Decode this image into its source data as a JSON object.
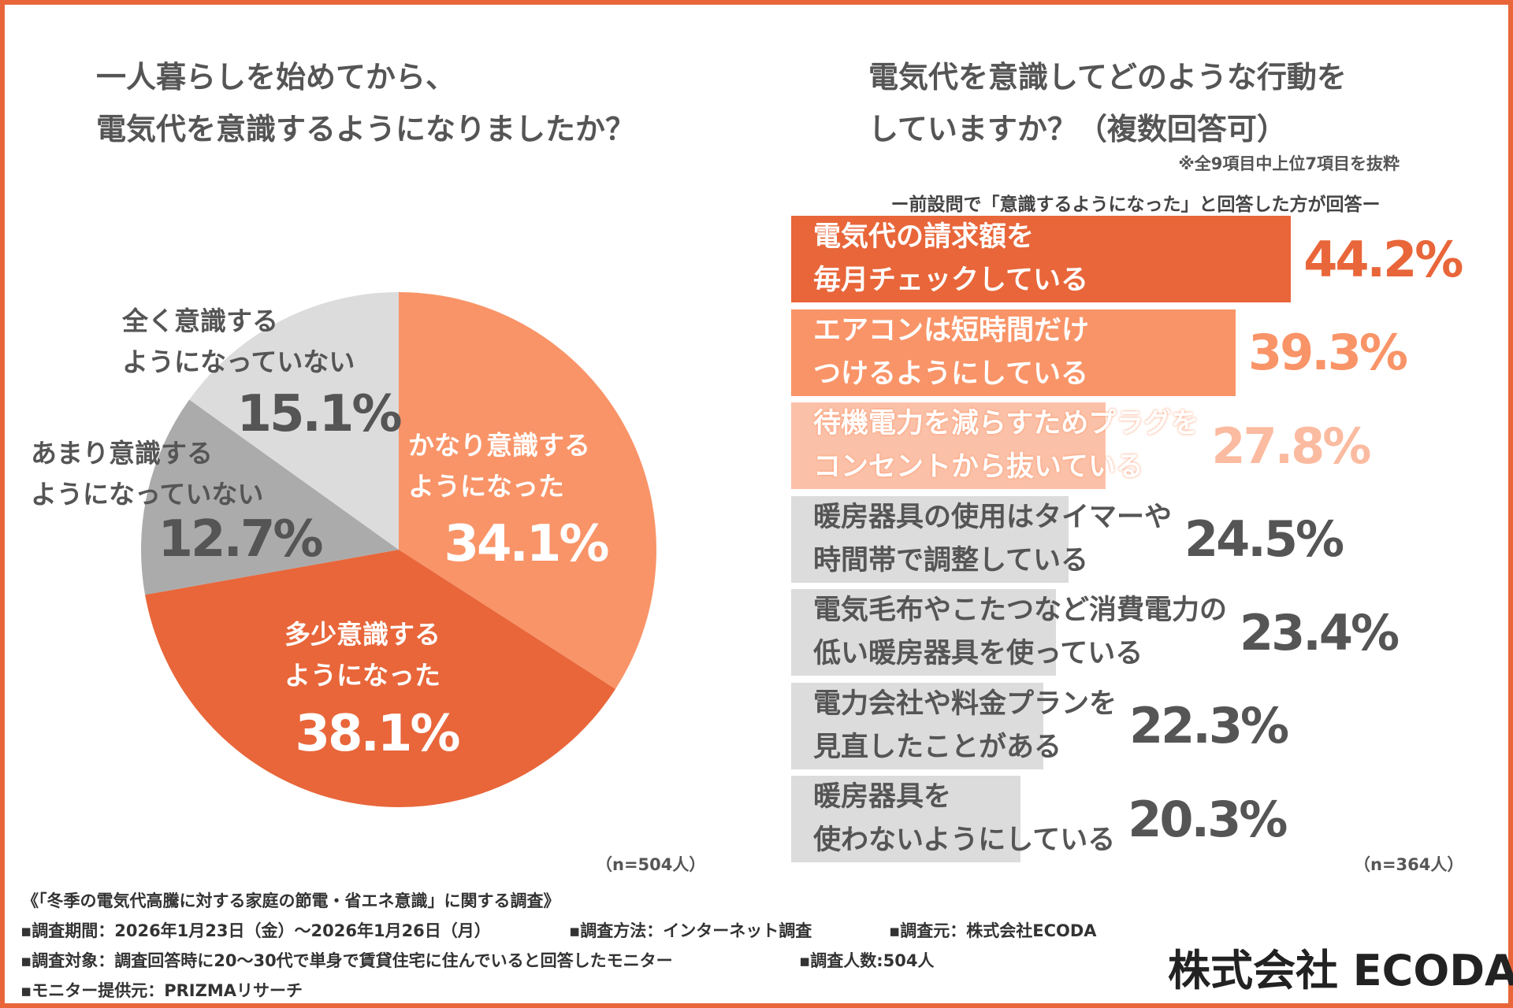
{
  "left": {
    "title_lines": [
      "一人暮らしを始めてから、",
      "電気代を意識するようになりましたか？"
    ],
    "n": "（n=504人）"
  },
  "right": {
    "title_lines": [
      "電気代を意識してどのような行動を",
      "していますか？（複数回答可）"
    ],
    "note": "※全9項目中上位7項目を抜粋",
    "subtitle": "ー前設問で「意識するようになった」と回答した方が回答ー",
    "n": "（n=364人）"
  },
  "chart_data": [
    {
      "type": "pie",
      "start": "top",
      "direction": "clockwise",
      "slices": [
        {
          "label_lines": [
            "かなり意識する",
            "ようになった"
          ],
          "value": 34.1,
          "value_label": "34.1%",
          "color": "#F99468",
          "text_color": "#ffffff"
        },
        {
          "label_lines": [
            "多少意識する",
            "ようになった"
          ],
          "value": 38.1,
          "value_label": "38.1%",
          "color": "#E8663A",
          "text_color": "#ffffff"
        },
        {
          "label_lines": [
            "あまり意識する",
            "ようになっていない"
          ],
          "value": 12.7,
          "value_label": "12.7%",
          "color": "#ABABAB",
          "text_color": "#555555"
        },
        {
          "label_lines": [
            "全く意識する",
            "ようになっていない"
          ],
          "value": 15.1,
          "value_label": "15.1%",
          "color": "#DCDCDC",
          "text_color": "#555555"
        }
      ]
    },
    {
      "type": "bar",
      "orientation": "horizontal",
      "bars": [
        {
          "label": "電気代の請求額を\n毎月チェックしている",
          "value": 44.2,
          "value_label": "44.2%",
          "color": "#E8663A",
          "text_color": "#ffffff",
          "value_color": "#E8663A"
        },
        {
          "label": "エアコンは短時間だけ\nつけるようにしている",
          "value": 39.3,
          "value_label": "39.3%",
          "color": "#F99468",
          "text_color": "#ffffff",
          "value_color": "#F99468"
        },
        {
          "label": "待機電力を減らすためプラグを\nコンセントから抜いている",
          "value": 27.8,
          "value_label": "27.8%",
          "color": "#FBC1A8",
          "text_color": "#ffffff",
          "value_color": "#FBBBA0"
        },
        {
          "label": "暖房器具の使用はタイマーや\n時間帯で調整している",
          "value": 24.5,
          "value_label": "24.5%",
          "color": "#DCDCDC",
          "text_color": "#555555",
          "value_color": "#555555"
        },
        {
          "label": "電気毛布やこたつなど消費電力の\n低い暖房器具を使っている",
          "value": 23.4,
          "value_label": "23.4%",
          "color": "#DCDCDC",
          "text_color": "#555555",
          "value_color": "#555555"
        },
        {
          "label": "電力会社や料金プランを\n見直したことがある",
          "value": 22.3,
          "value_label": "22.3%",
          "color": "#DCDCDC",
          "text_color": "#555555",
          "value_color": "#555555"
        },
        {
          "label": "暖房器具を\n使わないようにしている",
          "value": 20.3,
          "value_label": "20.3%",
          "color": "#DCDCDC",
          "text_color": "#555555",
          "value_color": "#555555"
        }
      ]
    }
  ],
  "footer": {
    "survey_title": "《「冬季の電気代高騰に対する家庭の節電・省エネ意識」に関する調査》",
    "items": [
      "▪調査期間：2026年1月23日（金）～2026年1月26日（月）",
      "▪調査方法：インターネット調査",
      "▪調査元：株式会社ECODA",
      "▪調査対象：調査回答時に20～30代で単身で賃貸住宅に住んでいると回答したモニター",
      "▪調査人数:504人",
      "▪モニター提供元：PRIZMAリサーチ"
    ],
    "logo": "株式会社 ECODA"
  },
  "accent": "#E8663A"
}
